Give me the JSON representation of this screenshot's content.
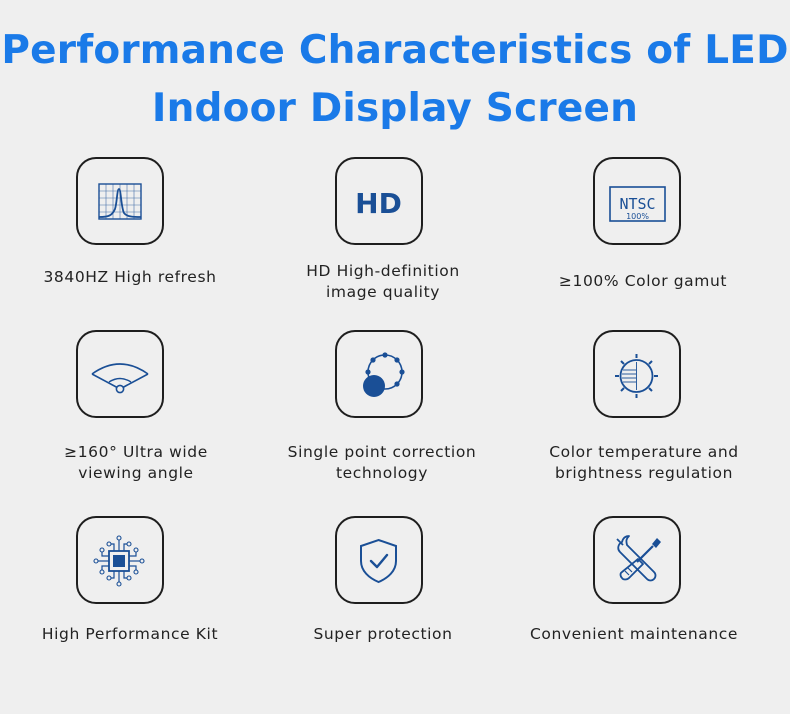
{
  "title": {
    "line1": "Performance Characteristics of LED",
    "line2": "Indoor Display Screen"
  },
  "colors": {
    "accent": "#1a7ae8",
    "icon": "#1a4f96",
    "border": "#1e1e1e",
    "background": "#efefef"
  },
  "features": [
    {
      "icon": "refresh-graph-icon",
      "label_lines": [
        "3840HZ High refresh"
      ]
    },
    {
      "icon": "hd-icon",
      "icon_text": "HD",
      "label_lines": [
        "HD High-definition",
        "image quality"
      ]
    },
    {
      "icon": "ntsc-icon",
      "icon_text": "NTSC",
      "icon_subtext": "100%",
      "label_lines": [
        "≥100% Color gamut"
      ]
    },
    {
      "icon": "viewing-angle-icon",
      "label_lines": [
        "≥160° Ultra wide",
        "viewing angle"
      ]
    },
    {
      "icon": "point-correction-icon",
      "label_lines": [
        "Single point correction",
        "technology"
      ]
    },
    {
      "icon": "color-temperature-icon",
      "label_lines": [
        "Color temperature and",
        "brightness regulation"
      ]
    },
    {
      "icon": "chip-icon",
      "label_lines": [
        "High Performance Kit"
      ]
    },
    {
      "icon": "shield-check-icon",
      "label_lines": [
        "Super protection"
      ]
    },
    {
      "icon": "tools-icon",
      "label_lines": [
        "Convenient maintenance"
      ]
    }
  ]
}
